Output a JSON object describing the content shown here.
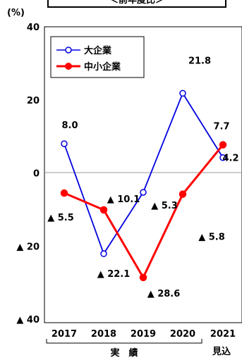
{
  "chart_data": {
    "type": "line",
    "title": "＜前年度比＞",
    "ylabel": "(%)",
    "categories": [
      "2017",
      "2018",
      "2019",
      "2020",
      "2021"
    ],
    "category_group_labels": {
      "actual": "実　績",
      "forecast": "見込"
    },
    "ylim": [
      -40,
      40
    ],
    "yticks": [
      {
        "value": 40,
        "label": "40"
      },
      {
        "value": 20,
        "label": "20"
      },
      {
        "value": 0,
        "label": "0"
      },
      {
        "value": -20,
        "label": "▲ 20"
      },
      {
        "value": -40,
        "label": "▲ 40"
      }
    ],
    "series": [
      {
        "name": "大企業",
        "color": "#0000e0",
        "marker": "open-circle",
        "values": [
          8.0,
          -22.1,
          -5.3,
          21.8,
          4.2
        ],
        "labels": [
          "8.0",
          "▲ 22.1",
          "▲ 5.3",
          "21.8",
          "4.2"
        ]
      },
      {
        "name": "中小企業",
        "color": "#ff0000",
        "marker": "filled-circle",
        "values": [
          -5.5,
          -10.1,
          -28.6,
          -5.8,
          7.7
        ],
        "labels": [
          "▲ 5.5",
          "▲ 10.1",
          "▲ 28.6",
          "▲ 5.8",
          "7.7"
        ]
      }
    ],
    "zero_line": true,
    "legend": "top-left"
  }
}
